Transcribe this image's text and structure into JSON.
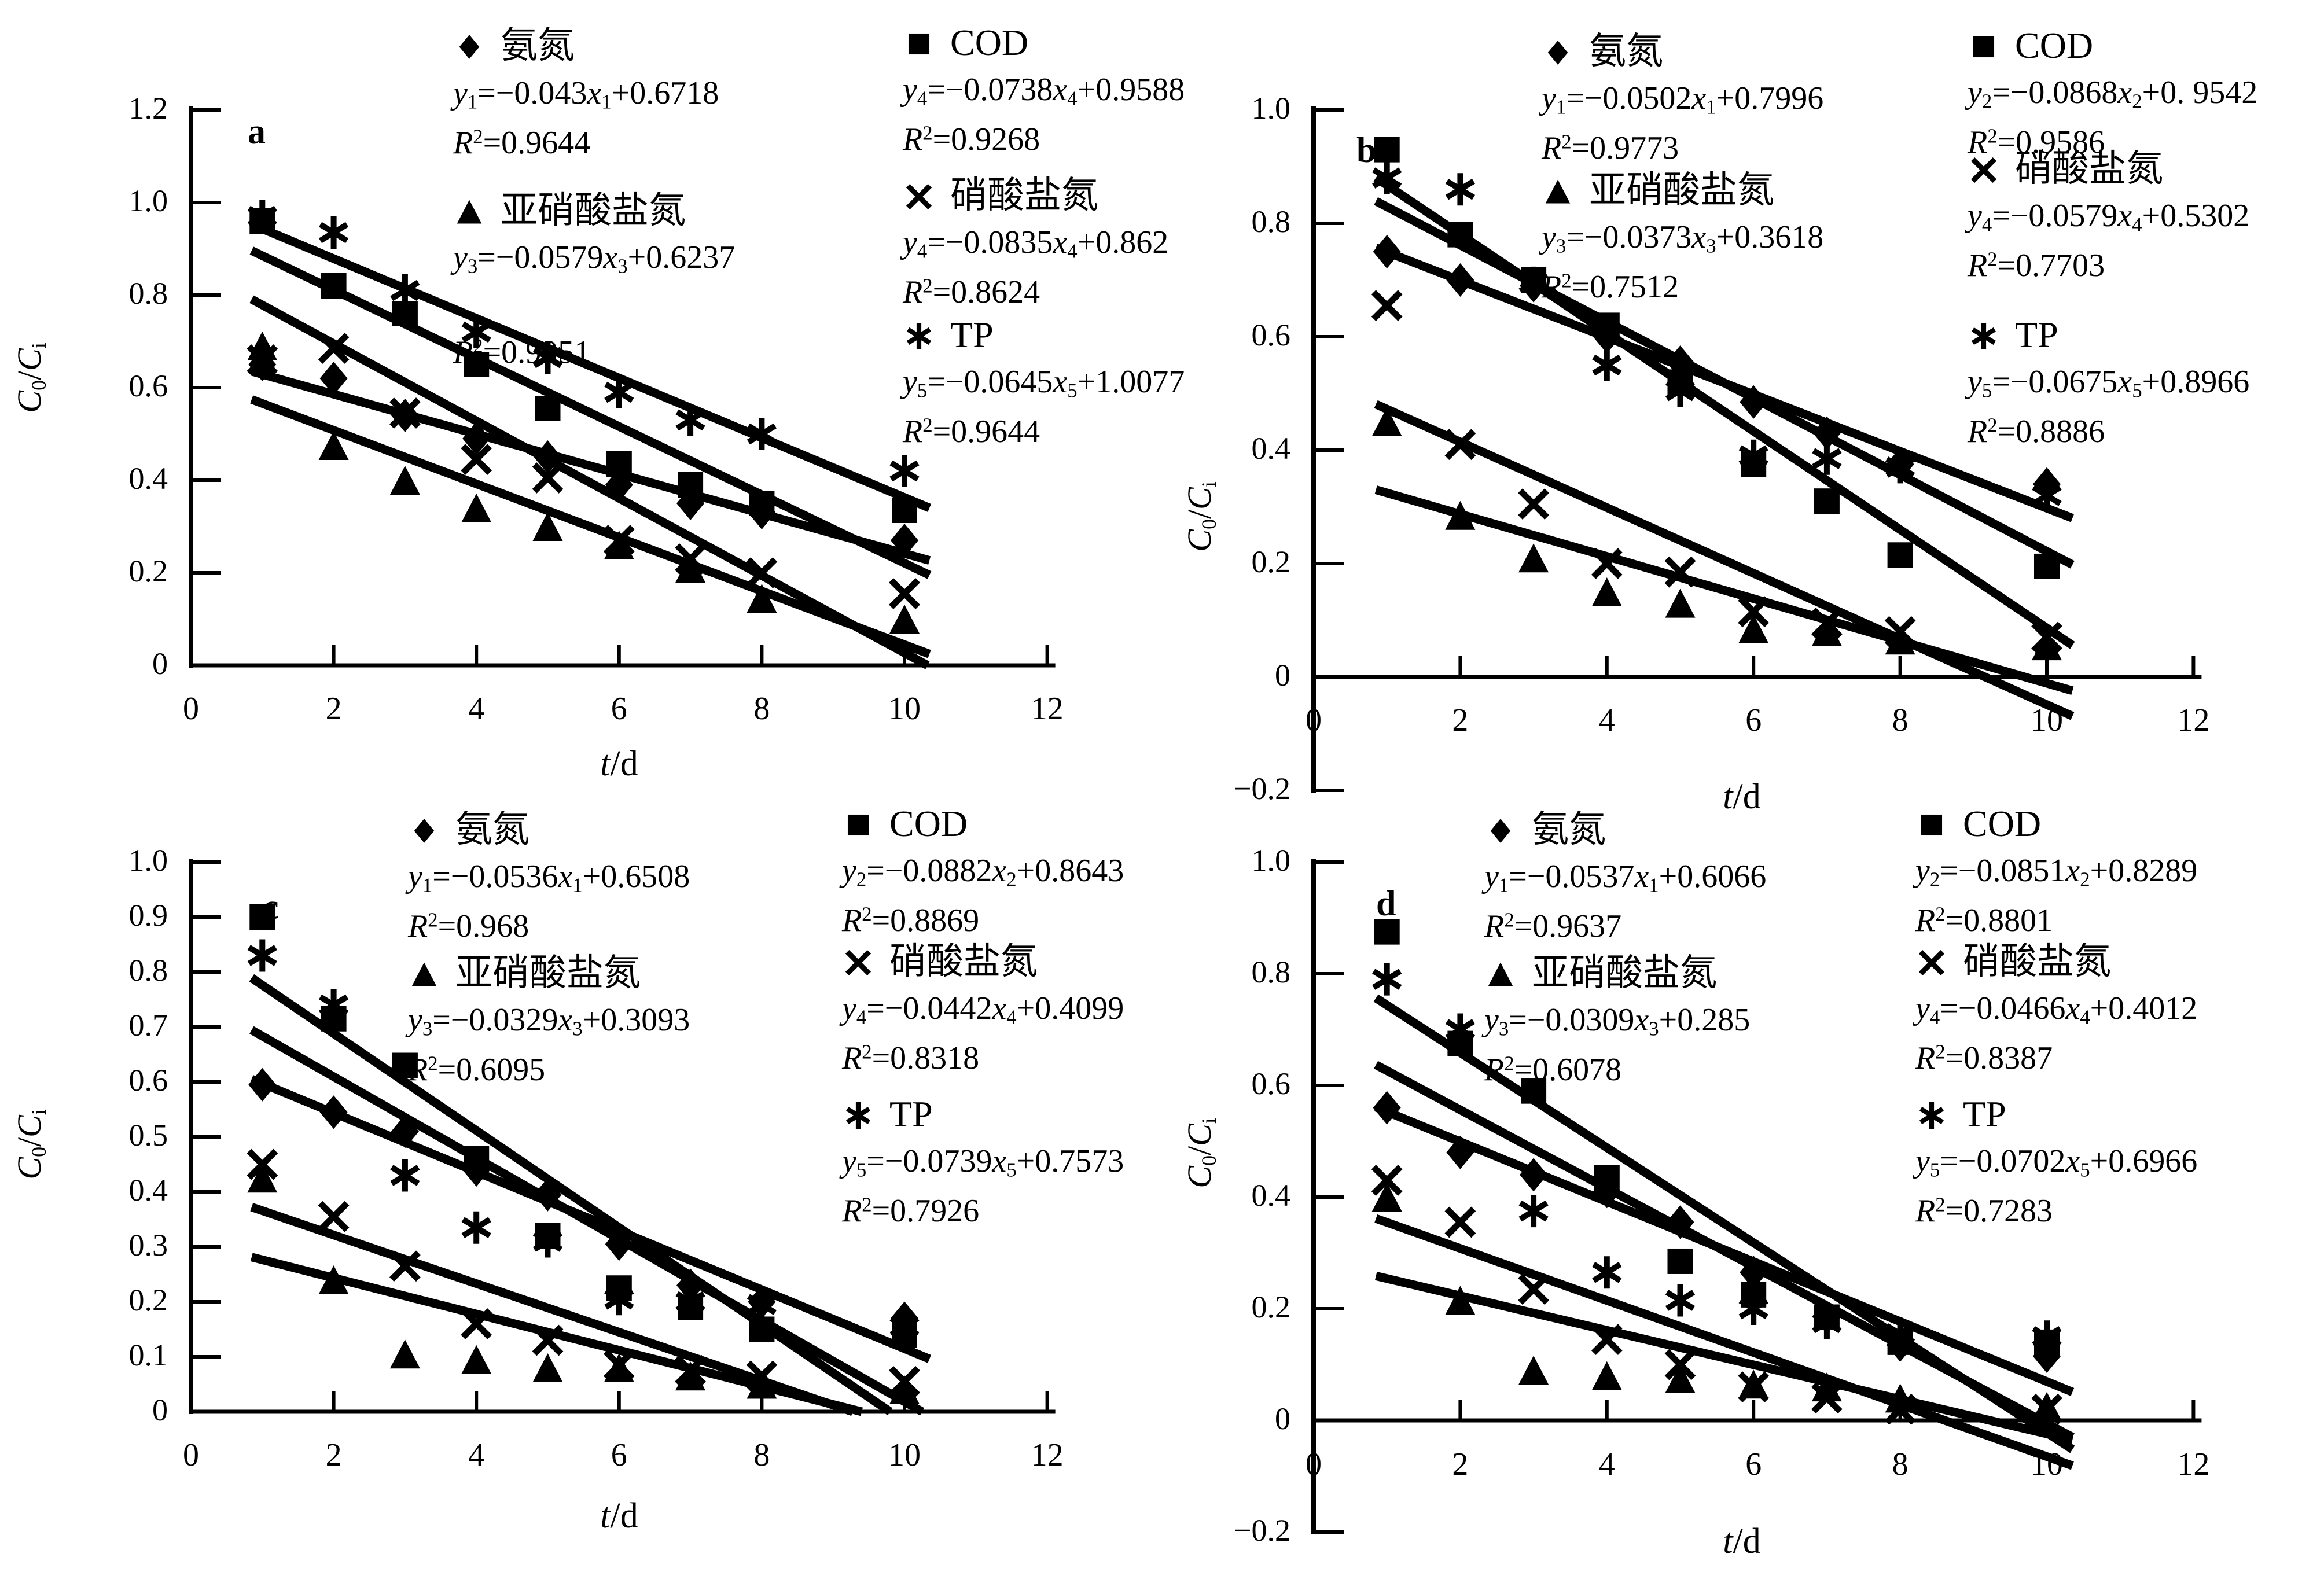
{
  "figure": {
    "background": "#ffffff",
    "ink": "#000000",
    "xlabel": "t/d",
    "ylabel": "C0/Ci"
  },
  "chart_data": [
    {
      "panel": "a",
      "type": "scatter",
      "xlabel": "t/d",
      "ylabel": "C0/Ci",
      "xlim": [
        0,
        12
      ],
      "ylim": [
        0,
        1.2
      ],
      "grid": false,
      "xticks": {
        "values": [
          0,
          2,
          4,
          6,
          8,
          10,
          12
        ],
        "labels": [
          "0",
          "2",
          "4",
          "6",
          "8",
          "10",
          "12"
        ]
      },
      "yticks": {
        "values": [
          1.2,
          1.0,
          0.8,
          0.6,
          0.4,
          0.2,
          0
        ],
        "labels": [
          "1.2",
          "1.0",
          "0.8",
          "0.6",
          "0.4",
          "0.2",
          "0"
        ]
      },
      "x": [
        1,
        2,
        3,
        4,
        5,
        6,
        7,
        8,
        10
      ],
      "series": [
        {
          "name": "氨氮",
          "marker": "diamond",
          "eq": "y_1=−0.043x_1+0.6718",
          "r2": "0.9644",
          "values": [
            0.65,
            0.62,
            0.54,
            0.49,
            0.45,
            0.39,
            0.35,
            0.33,
            0.27
          ]
        },
        {
          "name": "COD",
          "marker": "square",
          "eq": "y_4=−0.0738x_4+0.9588",
          "r2": "0.9268",
          "values": [
            0.96,
            0.82,
            0.76,
            0.65,
            0.555,
            0.435,
            0.39,
            0.35,
            0.335
          ]
        },
        {
          "name": "亚硝酸盐氮",
          "marker": "triangle",
          "eq": "y_3=−0.0579x_3+0.6237",
          "r2": "0.9051",
          "values": [
            0.69,
            0.475,
            0.4,
            0.34,
            0.3,
            0.26,
            0.21,
            0.145,
            0.1
          ]
        },
        {
          "name": "硝酸盐氮",
          "marker": "cross",
          "eq": "y_4=−0.0835x_4+0.862",
          "r2": "0.8624",
          "values": [
            0.66,
            0.685,
            0.545,
            0.445,
            0.405,
            0.27,
            0.23,
            0.2,
            0.155
          ]
        },
        {
          "name": "TP",
          "marker": "star",
          "eq": "y_5=−0.0645x_5+1.0077",
          "r2": "0.9644",
          "values": [
            0.97,
            0.935,
            0.81,
            0.72,
            0.665,
            0.59,
            0.53,
            0.5,
            0.42
          ]
        }
      ]
    },
    {
      "panel": "b",
      "type": "scatter",
      "xlabel": "t/d",
      "ylabel": "C0/Ci",
      "xlim": [
        0,
        12
      ],
      "ylim": [
        -0.2,
        1.0
      ],
      "grid": false,
      "xticks": {
        "values": [
          0,
          2,
          4,
          6,
          8,
          10,
          12
        ],
        "labels": [
          "0",
          "2",
          "4",
          "6",
          "8",
          "10",
          "12"
        ]
      },
      "yticks": {
        "values": [
          1.0,
          0.8,
          0.6,
          0.4,
          0.2,
          0,
          -0.2
        ],
        "labels": [
          "1.0",
          "0.8",
          "0.6",
          "0.4",
          "0.2",
          "0",
          "−0.2"
        ]
      },
      "x": [
        1,
        2,
        3,
        4,
        5,
        6,
        7,
        8,
        10
      ],
      "series": [
        {
          "name": "氨氮",
          "marker": "diamond",
          "eq": "y_1=−0.0502x_1+0.7996",
          "r2": "0.9773",
          "values": [
            0.75,
            0.7,
            0.69,
            0.6,
            0.555,
            0.485,
            0.43,
            0.375,
            0.34
          ]
        },
        {
          "name": "COD",
          "marker": "square",
          "eq": "y_2=−0.0868x_2+0. 9542",
          "r2": "0.9586",
          "values": [
            0.93,
            0.78,
            0.7,
            0.62,
            0.52,
            0.375,
            0.31,
            0.215,
            0.195
          ]
        },
        {
          "name": "亚硝酸盐氮",
          "marker": "triangle",
          "eq": "y_3=−0.0373x_3+0.3618",
          "r2": "0.7512",
          "values": [
            0.45,
            0.285,
            0.21,
            0.15,
            0.13,
            0.085,
            0.08,
            0.065,
            0.055
          ]
        },
        {
          "name": "硝酸盐氮",
          "marker": "cross",
          "eq": "y_4=−0.0579x_4+0.5302",
          "r2": "0.7703",
          "values": [
            0.655,
            0.41,
            0.305,
            0.2,
            0.185,
            0.115,
            0.095,
            0.08,
            0.07
          ]
        },
        {
          "name": "TP",
          "marker": "star",
          "eq": "y_5=−0.0675x_5+0.8966",
          "r2": "0.8886",
          "values": [
            0.88,
            0.86,
            0.695,
            0.55,
            0.505,
            0.39,
            0.385,
            0.37,
            0.32
          ]
        }
      ]
    },
    {
      "panel": "c",
      "type": "scatter",
      "xlabel": "t/d",
      "ylabel": "C0/Ci",
      "xlim": [
        0,
        12
      ],
      "ylim": [
        0,
        1.0
      ],
      "grid": false,
      "xticks": {
        "values": [
          0,
          2,
          4,
          6,
          8,
          10,
          12
        ],
        "labels": [
          "0",
          "2",
          "4",
          "6",
          "8",
          "10",
          "12"
        ]
      },
      "yticks": {
        "values": [
          1.0,
          0.9,
          0.8,
          0.7,
          0.6,
          0.5,
          0.4,
          0.3,
          0.2,
          0.1,
          0
        ],
        "labels": [
          "1.0",
          "0.9",
          "0.8",
          "0.7",
          "0.6",
          "0.5",
          "0.4",
          "0.3",
          "0.2",
          "0.1",
          "0"
        ]
      },
      "x": [
        1,
        2,
        3,
        4,
        5,
        6,
        7,
        8,
        10
      ],
      "series": [
        {
          "name": "氨氮",
          "marker": "diamond",
          "eq": "y_1=−0.0536x_1+0.6508",
          "r2": "0.968",
          "values": [
            0.595,
            0.545,
            0.51,
            0.44,
            0.395,
            0.305,
            0.23,
            0.2,
            0.17
          ]
        },
        {
          "name": "COD",
          "marker": "square",
          "eq": "y_2=−0.0882x_2+0.8643",
          "r2": "0.8869",
          "values": [
            0.9,
            0.715,
            0.63,
            0.46,
            0.32,
            0.225,
            0.19,
            0.15,
            0.14
          ]
        },
        {
          "name": "亚硝酸盐氮",
          "marker": "triangle",
          "eq": "y_3=−0.0329x_3+0.3093",
          "r2": "0.6095",
          "values": [
            0.425,
            0.24,
            0.105,
            0.095,
            0.08,
            0.08,
            0.065,
            0.05,
            0.04
          ]
        },
        {
          "name": "硝酸盐氮",
          "marker": "cross",
          "eq": "y_4=−0.0442x_4+0.4099",
          "r2": "0.8318",
          "values": [
            0.45,
            0.355,
            0.265,
            0.16,
            0.13,
            0.085,
            0.075,
            0.065,
            0.055
          ]
        },
        {
          "name": "TP",
          "marker": "star",
          "eq": "y_5=−0.0739x_5+0.7573",
          "r2": "0.7926",
          "values": [
            0.83,
            0.74,
            0.43,
            0.335,
            0.31,
            0.205,
            0.2,
            0.195,
            0.155
          ]
        }
      ]
    },
    {
      "panel": "d",
      "type": "scatter",
      "xlabel": "t/d",
      "ylabel": "C0/Ci",
      "xlim": [
        0,
        12
      ],
      "ylim": [
        -0.2,
        1.0
      ],
      "grid": false,
      "xticks": {
        "values": [
          0,
          2,
          4,
          6,
          8,
          10,
          12
        ],
        "labels": [
          "0",
          "2",
          "4",
          "6",
          "8",
          "10",
          "12"
        ]
      },
      "yticks": {
        "values": [
          1.0,
          0.8,
          0.6,
          0.4,
          0.2,
          0,
          -0.2
        ],
        "labels": [
          "1.0",
          "0.8",
          "0.6",
          "0.4",
          "0.2",
          "0",
          "−0.2"
        ]
      },
      "x": [
        1,
        2,
        3,
        4,
        5,
        6,
        7,
        8,
        10
      ],
      "series": [
        {
          "name": "氨氮",
          "marker": "diamond",
          "eq": "y_1=−0.0537x_1+0.6066",
          "r2": "0.9637",
          "values": [
            0.56,
            0.48,
            0.44,
            0.41,
            0.355,
            0.265,
            0.185,
            0.135,
            0.115
          ]
        },
        {
          "name": "COD",
          "marker": "square",
          "eq": "y_2=−0.0851x_2+0.8289",
          "r2": "0.8801",
          "values": [
            0.875,
            0.675,
            0.59,
            0.435,
            0.285,
            0.225,
            0.185,
            0.14,
            0.14
          ]
        },
        {
          "name": "亚硝酸盐氮",
          "marker": "triangle",
          "eq": "y_3=−0.0309x_3+0.285",
          "r2": "0.6078",
          "values": [
            0.4,
            0.215,
            0.09,
            0.08,
            0.075,
            0.065,
            0.06,
            0.04,
            0.025
          ]
        },
        {
          "name": "硝酸盐氮",
          "marker": "cross",
          "eq": "y_4=−0.0466x_4+0.4012",
          "r2": "0.8387",
          "values": [
            0.43,
            0.355,
            0.235,
            0.145,
            0.1,
            0.06,
            0.04,
            0.02,
            0.02
          ]
        },
        {
          "name": "TP",
          "marker": "star",
          "eq": "y_5=−0.0702x_5+0.6966",
          "r2": "0.7283",
          "values": [
            0.79,
            0.7,
            0.375,
            0.265,
            0.215,
            0.2,
            0.175,
            0.155,
            0.15
          ]
        }
      ]
    }
  ]
}
